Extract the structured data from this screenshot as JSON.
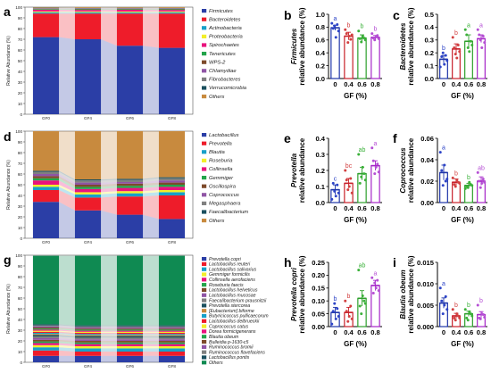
{
  "colors": {
    "bar_0": "#1f35a8",
    "bar_04": "#c8202a",
    "bar_06": "#2ea02c",
    "bar_08": "#a626c8",
    "dot_0": "#2d44c7",
    "dot_04": "#d24040",
    "dot_06": "#3bb13a",
    "dot_08": "#b54fd4"
  },
  "chart_data": [
    {
      "id": "a",
      "type": "bar",
      "stacked": true,
      "categories": [
        "GF0",
        "GF4",
        "GF6",
        "GF8"
      ],
      "ylabel": "Relative Abundance (%)",
      "ylim": [
        0,
        100
      ],
      "yticks": [
        "0",
        "10",
        "20",
        "30",
        "40",
        "50",
        "60",
        "70",
        "80",
        "90",
        "100"
      ],
      "series": [
        {
          "name": "Firmicutes",
          "color": "#2b3ea6",
          "values": [
            72,
            70,
            64,
            62
          ]
        },
        {
          "name": "Bacteroidetes",
          "color": "#ee1c2a",
          "values": [
            22,
            24,
            30,
            32
          ]
        },
        {
          "name": "Actinobacteria",
          "color": "#17a0c8",
          "values": [
            1.2,
            1.2,
            1.1,
            1.2
          ]
        },
        {
          "name": "Proteobacteria",
          "color": "#f2ee2a",
          "values": [
            0.8,
            0.8,
            0.8,
            0.8
          ]
        },
        {
          "name": "Spirochaetes",
          "color": "#e9127d",
          "values": [
            1.6,
            1.4,
            1.6,
            1.4
          ]
        },
        {
          "name": "Tenericutes",
          "color": "#23a44a",
          "values": [
            0.6,
            0.6,
            0.6,
            0.6
          ]
        },
        {
          "name": "WPS-2",
          "color": "#7d4a2a",
          "values": [
            0.4,
            0.4,
            0.4,
            0.4
          ]
        },
        {
          "name": "Chlamydiae",
          "color": "#8f54a5",
          "values": [
            0.3,
            0.3,
            0.3,
            0.3
          ]
        },
        {
          "name": "Fibrobacteres",
          "color": "#808080",
          "values": [
            0.3,
            0.3,
            0.3,
            0.3
          ]
        },
        {
          "name": "Verrucomicrobia",
          "color": "#1a4f5e",
          "values": [
            0.3,
            0.3,
            0.3,
            0.3
          ]
        },
        {
          "name": "Others",
          "color": "#c88a3e",
          "values": [
            0.5,
            0.7,
            0.6,
            0.7
          ]
        }
      ]
    },
    {
      "id": "b",
      "type": "bar",
      "categories": [
        "0",
        "0.4",
        "0.6",
        "0.8"
      ],
      "xlabel": "GF (%)",
      "ylabel": "relative abundance (%)",
      "ylabel_taxon": "Firmicutes",
      "ylim": [
        0,
        1.0
      ],
      "yticks": [
        "0.0",
        "0.2",
        "0.4",
        "0.6",
        "0.8",
        "1.0"
      ],
      "values": [
        0.79,
        0.66,
        0.63,
        0.64
      ],
      "errors": [
        0.04,
        0.06,
        0.05,
        0.03
      ],
      "letters": [
        "a",
        "b",
        "b",
        "b"
      ],
      "points": [
        [
          0.86,
          0.78,
          0.82,
          0.64,
          0.84,
          0.74
        ],
        [
          0.76,
          0.7,
          0.56,
          0.66,
          0.61,
          0.68
        ],
        [
          0.74,
          0.62,
          0.57,
          0.66,
          0.63,
          0.6
        ],
        [
          0.7,
          0.63,
          0.6,
          0.65,
          0.67,
          0.62
        ]
      ]
    },
    {
      "id": "c",
      "type": "bar",
      "categories": [
        "0",
        "0.4",
        "0.6",
        "0.8"
      ],
      "xlabel": "GF (%)",
      "ylabel": "relative abundance (%)",
      "ylabel_taxon": "Bacteroidetes",
      "ylim": [
        0,
        0.5
      ],
      "yticks": [
        "0.0",
        "0.1",
        "0.2",
        "0.3",
        "0.4",
        "0.5"
      ],
      "values": [
        0.15,
        0.23,
        0.29,
        0.31
      ],
      "errors": [
        0.03,
        0.04,
        0.05,
        0.03
      ],
      "letters": [
        "b",
        "b",
        "a",
        "a"
      ],
      "points": [
        [
          0.09,
          0.17,
          0.2,
          0.11,
          0.18,
          0.14
        ],
        [
          0.32,
          0.24,
          0.19,
          0.16,
          0.26,
          0.21
        ],
        [
          0.38,
          0.34,
          0.24,
          0.21,
          0.29,
          0.26
        ],
        [
          0.38,
          0.34,
          0.3,
          0.24,
          0.33,
          0.28
        ]
      ]
    },
    {
      "id": "d",
      "type": "bar",
      "stacked": true,
      "categories": [
        "GF0",
        "GF4",
        "GF6",
        "GF8"
      ],
      "ylabel": "Relative Abundance (%)",
      "ylim": [
        0,
        100
      ],
      "yticks": [
        "0",
        "10",
        "20",
        "30",
        "40",
        "50",
        "60",
        "70",
        "80",
        "90",
        "100"
      ],
      "series": [
        {
          "name": "Lactobacillus",
          "color": "#2b3ea6",
          "values": [
            34,
            26,
            22,
            18
          ]
        },
        {
          "name": "Prevotella",
          "color": "#ee1c2a",
          "values": [
            11,
            12,
            17,
            22
          ]
        },
        {
          "name": "Blautia",
          "color": "#17a0c8",
          "values": [
            3,
            3,
            3,
            3
          ]
        },
        {
          "name": "Roseburia",
          "color": "#f2ee2a",
          "values": [
            2,
            2,
            2,
            2
          ]
        },
        {
          "name": "Collinsella",
          "color": "#e9127d",
          "values": [
            4,
            3,
            3,
            3
          ]
        },
        {
          "name": "Gemmiger",
          "color": "#23a44a",
          "values": [
            2,
            2,
            2,
            2
          ]
        },
        {
          "name": "Oscillospira",
          "color": "#7d4a2a",
          "values": [
            2,
            2,
            2,
            2
          ]
        },
        {
          "name": "Coprococcus",
          "color": "#8f54a5",
          "values": [
            2,
            2,
            1.5,
            2
          ]
        },
        {
          "name": "Megasphaera",
          "color": "#808080",
          "values": [
            2,
            2,
            2,
            2
          ]
        },
        {
          "name": "Faecalibacterium",
          "color": "#1a4f5e",
          "values": [
            1,
            1,
            1,
            1
          ]
        },
        {
          "name": "Others",
          "color": "#c88a3e",
          "values": [
            37,
            45,
            44.5,
            43
          ]
        }
      ]
    },
    {
      "id": "e",
      "type": "bar",
      "categories": [
        "0",
        "0.4",
        "0.6",
        "0.8"
      ],
      "xlabel": "GF (%)",
      "ylabel": "relative abundance",
      "ylabel_taxon": "Prevotella",
      "ylim": [
        0,
        0.4
      ],
      "yticks": [
        "0.0",
        "0.1",
        "0.2",
        "0.3",
        "0.4"
      ],
      "values": [
        0.08,
        0.12,
        0.18,
        0.23
      ],
      "errors": [
        0.03,
        0.03,
        0.04,
        0.03
      ],
      "letters": [
        "c",
        "bc",
        "ab",
        "a"
      ],
      "points": [
        [
          0.02,
          0.12,
          0.07,
          0.04,
          0.11,
          0.06
        ],
        [
          0.2,
          0.14,
          0.08,
          0.1,
          0.15,
          0.06
        ],
        [
          0.3,
          0.12,
          0.16,
          0.22,
          0.18,
          0.14
        ],
        [
          0.34,
          0.26,
          0.18,
          0.22,
          0.24,
          0.19
        ]
      ]
    },
    {
      "id": "f",
      "type": "bar",
      "categories": [
        "0",
        "0.4",
        "0.6",
        "0.8"
      ],
      "xlabel": "GF (%)",
      "ylabel": "relative abundance",
      "ylabel_taxon": "Coprococcus",
      "ylim": [
        0,
        0.06
      ],
      "yticks": [
        "0.00",
        "0.02",
        "0.04",
        "0.06"
      ],
      "values": [
        0.028,
        0.019,
        0.016,
        0.02
      ],
      "errors": [
        0.007,
        0.003,
        0.002,
        0.004
      ],
      "letters": [
        "a",
        "b",
        "b",
        "ab"
      ],
      "points": [
        [
          0.047,
          0.03,
          0.016,
          0.035,
          0.02,
          0.022
        ],
        [
          0.023,
          0.017,
          0.015,
          0.021,
          0.019,
          0.018
        ],
        [
          0.013,
          0.015,
          0.014,
          0.019,
          0.017,
          0.016
        ],
        [
          0.028,
          0.02,
          0.014,
          0.018,
          0.022,
          0.019
        ]
      ]
    },
    {
      "id": "g",
      "type": "bar",
      "stacked": true,
      "categories": [
        "GF0",
        "GF4",
        "GF6",
        "GF8"
      ],
      "ylabel": "Relative Abundance (%)",
      "ylim": [
        0,
        100
      ],
      "yticks": [
        "0",
        "10",
        "20",
        "30",
        "40",
        "50",
        "60",
        "70",
        "80",
        "90",
        "100"
      ],
      "series": [
        {
          "name": "Prevotella copri",
          "color": "#2b3ea6",
          "values": [
            6,
            6,
            6,
            6
          ]
        },
        {
          "name": "Lactobacillus reuteri",
          "color": "#ee1c2a",
          "values": [
            5,
            4,
            4,
            4
          ]
        },
        {
          "name": "Lactobacillus salivarius",
          "color": "#17a0c8",
          "values": [
            3,
            3,
            3,
            3
          ]
        },
        {
          "name": "Gemmiger formicilis",
          "color": "#f2ee2a",
          "values": [
            2,
            2,
            2,
            2
          ]
        },
        {
          "name": "Collinsella aerofaciens",
          "color": "#e9127d",
          "values": [
            2,
            2,
            2,
            2
          ]
        },
        {
          "name": "Roseburia faecis",
          "color": "#23a44a",
          "values": [
            1.5,
            1.5,
            1.5,
            1.5
          ]
        },
        {
          "name": "Lactobacillus helveticus",
          "color": "#7d4a2a",
          "values": [
            1.5,
            1.5,
            1.5,
            1.5
          ]
        },
        {
          "name": "Lactobacillus mucosae",
          "color": "#8f54a5",
          "values": [
            1.5,
            1.5,
            1.5,
            1.5
          ]
        },
        {
          "name": "Faecalibacterium prausnitzii",
          "color": "#808080",
          "values": [
            1.5,
            1.5,
            1.5,
            1.5
          ]
        },
        {
          "name": "Prevotella stercorea",
          "color": "#1a4f5e",
          "values": [
            1.5,
            1.5,
            1.5,
            1.5
          ]
        },
        {
          "name": "[Eubacterium] biforme",
          "color": "#c88a3e",
          "values": [
            1,
            1,
            1,
            1
          ]
        },
        {
          "name": "Butyricicoccus pullicaecorum",
          "color": "#17a0c8",
          "values": [
            1,
            1,
            1,
            1
          ]
        },
        {
          "name": "Lactobacillus delbrueckii",
          "color": "#ee1c2a",
          "values": [
            1,
            1,
            1,
            1
          ]
        },
        {
          "name": "Coprococcus catus",
          "color": "#f2ee2a",
          "values": [
            1,
            1,
            1,
            1
          ]
        },
        {
          "name": "Dorea formicigenerans",
          "color": "#e9127d",
          "values": [
            1,
            1,
            1,
            1
          ]
        },
        {
          "name": "Blautia obeum",
          "color": "#23a44a",
          "values": [
            1,
            1,
            1,
            1
          ]
        },
        {
          "name": "Bulleidia p-1630-c5",
          "color": "#7d4a2a",
          "values": [
            1,
            1,
            1,
            1
          ]
        },
        {
          "name": "Ruminococcus bromii",
          "color": "#8f54a5",
          "values": [
            1,
            1,
            1,
            1
          ]
        },
        {
          "name": "Ruminococcus flavefaciens",
          "color": "#808080",
          "values": [
            1,
            1,
            1,
            1
          ]
        },
        {
          "name": "Lactobacillus pontis",
          "color": "#1a4f5e",
          "values": [
            1,
            1,
            1,
            1
          ]
        },
        {
          "name": "Others",
          "color": "#0f8a52",
          "values": [
            64,
            65,
            65,
            65
          ]
        }
      ]
    },
    {
      "id": "h",
      "type": "bar",
      "categories": [
        "0",
        "0.4",
        "0.6",
        "0.8"
      ],
      "xlabel": "GF (%)",
      "ylabel": "relative abundance (%)",
      "ylabel_taxon": "Prevotella copri",
      "ylim": [
        0,
        0.25
      ],
      "yticks": [
        "0.00",
        "0.05",
        "0.10",
        "0.15",
        "0.20",
        "0.25"
      ],
      "values": [
        0.055,
        0.055,
        0.11,
        0.16
      ],
      "errors": [
        0.02,
        0.02,
        0.03,
        0.02
      ],
      "letters": [
        "b",
        "b",
        "ab",
        "a"
      ],
      "points": [
        [
          0.01,
          0.06,
          0.09,
          0.03,
          0.07,
          0.04
        ],
        [
          0.1,
          0.06,
          0.02,
          0.04,
          0.08,
          0.03
        ],
        [
          0.22,
          0.08,
          0.05,
          0.12,
          0.1,
          0.09
        ],
        [
          0.19,
          0.13,
          0.17,
          0.15,
          0.18,
          0.14
        ]
      ]
    },
    {
      "id": "i",
      "type": "bar",
      "categories": [
        "0",
        "0.4",
        "0.6",
        "0.8"
      ],
      "xlabel": "GF (%)",
      "ylabel": "relative abundance (%)",
      "ylabel_taxon": "Blautia obeum",
      "ylim": [
        0,
        0.015
      ],
      "yticks": [
        "0.000",
        "0.005",
        "0.010",
        "0.015"
      ],
      "values": [
        0.0055,
        0.0025,
        0.003,
        0.0028
      ],
      "errors": [
        0.0012,
        0.0006,
        0.0006,
        0.0007
      ],
      "letters": [
        "a",
        "b",
        "b",
        "b"
      ],
      "points": [
        [
          0.009,
          0.006,
          0.003,
          0.005,
          0.007,
          0.004
        ],
        [
          0.004,
          0.002,
          0.0015,
          0.003,
          0.0025,
          0.002
        ],
        [
          0.004,
          0.002,
          0.0015,
          0.0035,
          0.003,
          0.0025
        ],
        [
          0.005,
          0.002,
          0.0018,
          0.003,
          0.0028,
          0.0022
        ]
      ]
    }
  ]
}
